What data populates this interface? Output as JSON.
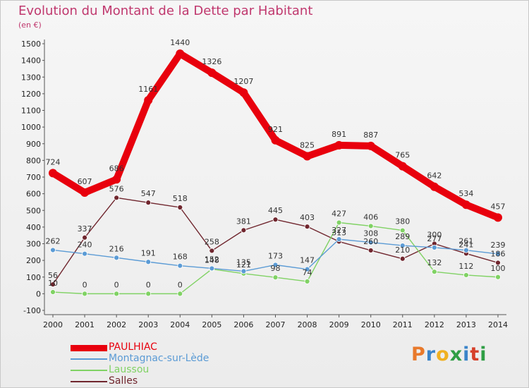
{
  "title": "Evolution du Montant de la Dette par Habitant",
  "subtitle": "(en €)",
  "logo": {
    "letters": [
      "P",
      "r",
      "o",
      "x",
      "i",
      "t",
      "i"
    ],
    "colors": [
      "#e8792b",
      "#3a84c9",
      "#f0b020",
      "#2f9e44",
      "#3a84c9",
      "#d6402a",
      "#2f9e44"
    ]
  },
  "chart_data": {
    "type": "line",
    "x": [
      "2000",
      "2001",
      "2002",
      "2003",
      "2004",
      "2005",
      "2006",
      "2007",
      "2008",
      "2009",
      "2010",
      "2011",
      "2012",
      "2013",
      "2014"
    ],
    "ylim": [
      -100,
      1500
    ],
    "yticks": [
      "-100",
      "0",
      "100",
      "200",
      "300",
      "400",
      "500",
      "600",
      "700",
      "800",
      "900",
      "1000",
      "1100",
      "1200",
      "1300",
      "1400",
      "1500"
    ],
    "grid": false,
    "legend_position": "bottom-left",
    "series": [
      {
        "name": "PAULHIAC",
        "color": "#e8000d",
        "values": [
          724,
          607,
          686,
          1161,
          1440,
          1326,
          1207,
          921,
          825,
          891,
          887,
          765,
          642,
          534,
          457
        ]
      },
      {
        "name": "Montagnac-sur-Lède",
        "color": "#5b9bd5",
        "values": [
          262,
          240,
          216,
          191,
          168,
          152,
          135,
          173,
          147,
          327,
          308,
          289,
          277,
          261,
          239
        ]
      },
      {
        "name": "Laussou",
        "color": "#80d264",
        "values": [
          10,
          0,
          0,
          0,
          0,
          148,
          121,
          98,
          74,
          427,
          406,
          380,
          132,
          112,
          100
        ]
      },
      {
        "name": "Salles",
        "color": "#70262e",
        "values": [
          56,
          337,
          576,
          547,
          518,
          258,
          381,
          445,
          403,
          313,
          260,
          210,
          300,
          241,
          186
        ]
      }
    ]
  }
}
